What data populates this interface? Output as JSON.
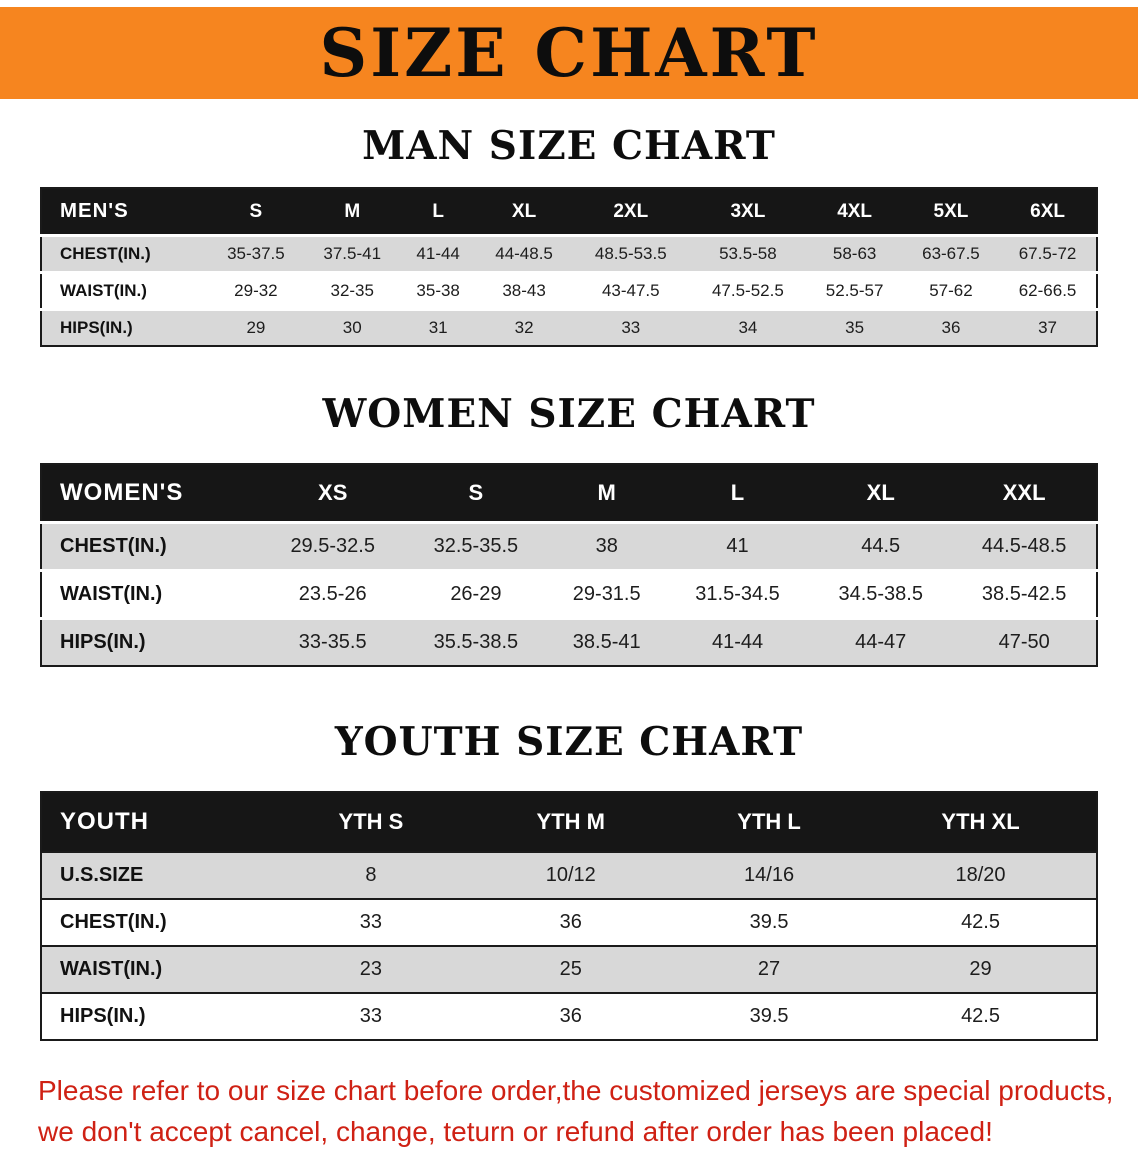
{
  "banner": {
    "title": "SIZE CHART"
  },
  "chart_data": [
    {
      "type": "table",
      "title": "MAN SIZE CHART",
      "columns": [
        "MEN'S",
        "S",
        "M",
        "L",
        "XL",
        "2XL",
        "3XL",
        "4XL",
        "5XL",
        "6XL"
      ],
      "rows": [
        [
          "CHEST(IN.)",
          "35-37.5",
          "37.5-41",
          "41-44",
          "44-48.5",
          "48.5-53.5",
          "53.5-58",
          "58-63",
          "63-67.5",
          "67.5-72"
        ],
        [
          "WAIST(IN.)",
          "29-32",
          "32-35",
          "35-38",
          "38-43",
          "43-47.5",
          "47.5-52.5",
          "52.5-57",
          "57-62",
          "62-66.5"
        ],
        [
          "HIPS(IN.)",
          "29",
          "30",
          "31",
          "32",
          "33",
          "34",
          "35",
          "36",
          "37"
        ]
      ]
    },
    {
      "type": "table",
      "title": "WOMEN SIZE CHART",
      "columns": [
        "WOMEN'S",
        "XS",
        "S",
        "M",
        "L",
        "XL",
        "XXL"
      ],
      "rows": [
        [
          "CHEST(IN.)",
          "29.5-32.5",
          "32.5-35.5",
          "38",
          "41",
          "44.5",
          "44.5-48.5"
        ],
        [
          "WAIST(IN.)",
          "23.5-26",
          "26-29",
          "29-31.5",
          "31.5-34.5",
          "34.5-38.5",
          "38.5-42.5"
        ],
        [
          "HIPS(IN.)",
          "33-35.5",
          "35.5-38.5",
          "38.5-41",
          "41-44",
          "44-47",
          "47-50"
        ]
      ]
    },
    {
      "type": "table",
      "title": "YOUTH SIZE CHART",
      "columns": [
        "YOUTH",
        "YTH S",
        "YTH M",
        "YTH L",
        "YTH XL"
      ],
      "rows": [
        [
          "U.S.SIZE",
          "8",
          "10/12",
          "14/16",
          "18/20"
        ],
        [
          "CHEST(IN.)",
          "33",
          "36",
          "39.5",
          "42.5"
        ],
        [
          "WAIST(IN.)",
          "23",
          "25",
          "27",
          "29"
        ],
        [
          "HIPS(IN.)",
          "33",
          "36",
          "39.5",
          "42.5"
        ]
      ]
    }
  ],
  "footer": {
    "line1": "Please refer to our size chart before order,the customized jerseys are special products,",
    "line2": "we don't accept cancel, change, teturn or refund after order has been placed!"
  },
  "colors": {
    "banner": "#F6851F",
    "header_bg": "#161616",
    "row_alt": "#d8d8d8",
    "footer_red": "#cf2114"
  }
}
